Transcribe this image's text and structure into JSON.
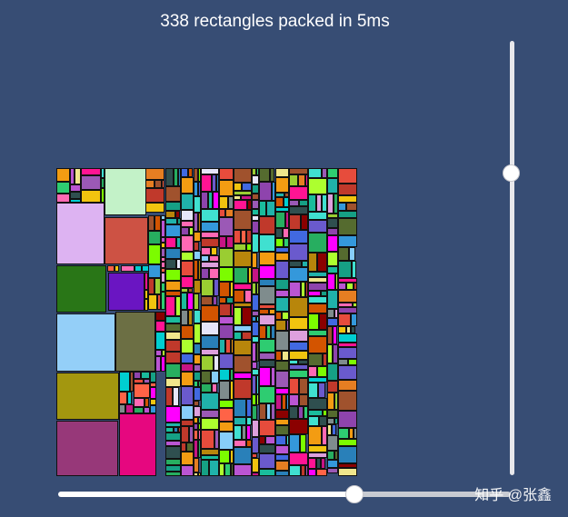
{
  "status_text": "338 rectangles packed in 5ms",
  "watermark": "知乎 @张鑫",
  "palette": [
    "#c0392b",
    "#e74c3c",
    "#2ecc71",
    "#27ae60",
    "#3498db",
    "#2980b9",
    "#9b59b6",
    "#8e44ad",
    "#f1c40f",
    "#f39c12",
    "#e67e22",
    "#1abc9c",
    "#16a085",
    "#d35400",
    "#7f8c8d",
    "#ff69b4",
    "#00ced1",
    "#adff2f",
    "#ba55d3",
    "#4169e1",
    "#ff1493",
    "#556b2f",
    "#8b0000",
    "#20b2aa",
    "#dda0dd",
    "#f0e68c",
    "#9acd32",
    "#6a5acd",
    "#ff6347",
    "#40e0d0",
    "#b8860b",
    "#87cefa",
    "#e6e6fa",
    "#7cfc00",
    "#ff00ff",
    "#2f4f4f",
    "#a0522d",
    "#c71585"
  ],
  "big_colors": {
    "pink_lavender": "#ddb3f2",
    "red_square": "#cd5244",
    "green_square": "#297617",
    "purple_square": "#6a15c2",
    "sky_square": "#94cff8",
    "olive_square": "#6c6f44",
    "mustard_square": "#a3970f",
    "plum_square": "#973879",
    "magenta_square": "#e6077f",
    "mint_square": "#c3f2c8"
  },
  "vertical_slider": {
    "value": 0.29
  },
  "horizontal_slider": {
    "value": 0.66
  },
  "rect_count": 338
}
